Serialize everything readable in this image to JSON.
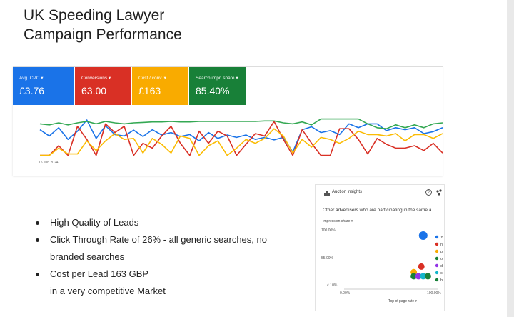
{
  "slide": {
    "title_line1": "UK Speeding Lawyer",
    "title_line2": "Campaign Performance"
  },
  "metrics": [
    {
      "label": "Avg. CPC ▾",
      "value": "£3.76",
      "color": "#1a73e8"
    },
    {
      "label": "Conversions ▾",
      "value": "63.00",
      "color": "#d93025"
    },
    {
      "label": "Cost / conv. ▾",
      "value": "£163",
      "color": "#f9ab00"
    },
    {
      "label": "Search impr. share ▾",
      "value": "85.40%",
      "color": "#188038"
    }
  ],
  "performance_chart": {
    "start_date": "15 Jun 2024",
    "series": [
      {
        "color": "#1a73e8",
        "values": [
          58,
          45,
          62,
          38,
          55,
          78,
          40,
          66,
          48,
          45,
          57,
          44,
          58,
          47,
          52,
          44,
          48,
          35,
          52,
          40,
          47,
          42,
          47,
          38,
          42,
          37,
          42,
          12,
          58,
          64,
          52,
          56,
          48,
          70,
          62,
          70,
          70,
          56,
          62,
          58,
          62,
          50,
          54,
          62
        ]
      },
      {
        "color": "#d93025",
        "values": [
          5,
          5,
          25,
          5,
          65,
          38,
          5,
          70,
          52,
          65,
          5,
          30,
          20,
          45,
          65,
          30,
          5,
          55,
          30,
          55,
          45,
          5,
          28,
          50,
          45,
          75,
          38,
          5,
          58,
          30,
          5,
          5,
          60,
          60,
          38,
          8,
          40,
          28,
          20,
          20,
          25,
          15,
          30,
          10
        ]
      },
      {
        "color": "#fbbc04",
        "values": [
          5,
          5,
          20,
          8,
          8,
          35,
          15,
          35,
          50,
          38,
          40,
          10,
          40,
          28,
          10,
          45,
          40,
          5,
          25,
          35,
          5,
          20,
          38,
          30,
          40,
          60,
          45,
          10,
          38,
          22,
          42,
          38,
          30,
          40,
          55,
          48,
          48,
          45,
          50,
          35,
          48,
          48,
          40,
          50
        ]
      },
      {
        "color": "#34a853",
        "values": [
          70,
          68,
          72,
          68,
          72,
          75,
          70,
          75,
          72,
          70,
          72,
          73,
          74,
          74,
          75,
          74,
          74,
          75,
          75,
          75,
          75,
          75,
          75,
          75,
          76,
          76,
          72,
          70,
          74,
          68,
          80,
          80,
          80,
          80,
          80,
          70,
          62,
          60,
          68,
          62,
          68,
          62,
          70,
          72
        ]
      }
    ]
  },
  "bullets": [
    {
      "line1": "High Quality of Leads",
      "line2": ""
    },
    {
      "line1": "Click Through Rate of 26% - all generic searches, no",
      "line2": "branded searches"
    },
    {
      "line1": "Cost per Lead 163 GBP",
      "line2": "in a very competitive Market"
    }
  ],
  "auction": {
    "title": "Auction insights",
    "subtitle": "Other advertisers who are participating in the same a",
    "y_dropdown": "Impression share ▾",
    "x_dropdown": "Top of page rate ▾",
    "y_top": "100.00%",
    "y_mid": "55.00%",
    "y_bottom": "< 10%",
    "x_left": "0.00%",
    "x_right": "100.00%",
    "legend_labels": [
      "Y",
      "n",
      "p",
      "o",
      "d",
      "c",
      "b"
    ],
    "points": [
      {
        "x": 90,
        "y": 100,
        "color": "#1a73e8",
        "big": true
      },
      {
        "x": 88,
        "y": 45,
        "color": "#d93025"
      },
      {
        "x": 80,
        "y": 35,
        "color": "#f9ab00"
      },
      {
        "x": 80,
        "y": 28,
        "color": "#188038"
      },
      {
        "x": 85,
        "y": 28,
        "color": "#9334e6"
      },
      {
        "x": 90,
        "y": 28,
        "color": "#12b5cb"
      },
      {
        "x": 95,
        "y": 28,
        "color": "#188038"
      }
    ]
  }
}
